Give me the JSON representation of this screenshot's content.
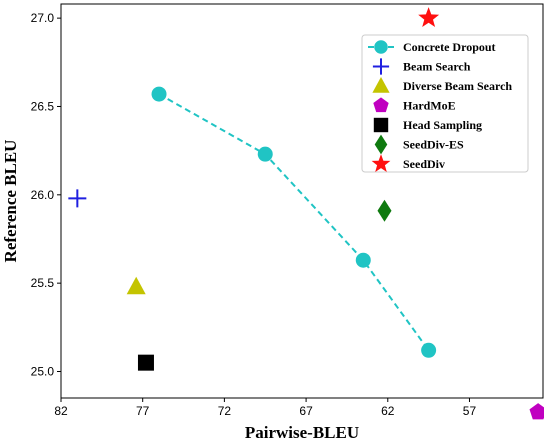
{
  "chart_data": {
    "type": "scatter",
    "xlabel": "Pairwise-BLEU",
    "ylabel": "Reference BLEU",
    "x_reversed": true,
    "xlim": [
      82,
      52.5
    ],
    "ylim": [
      24.85,
      27.08
    ],
    "x_ticks": [
      82,
      77,
      72,
      67,
      62,
      57
    ],
    "x_tick_labels": [
      "82",
      "77",
      "72",
      "67",
      "62",
      "57"
    ],
    "y_ticks": [
      25.0,
      25.5,
      26.0,
      26.5,
      27.0
    ],
    "y_tick_labels": [
      "25.0",
      "25.5",
      "26.0",
      "26.5",
      "27.0"
    ],
    "legend_position": "upper right",
    "series": [
      {
        "name": "Concrete Dropout",
        "marker": "circle",
        "line": "dashed",
        "color": "#20c4c4",
        "points": [
          [
            76.0,
            26.57
          ],
          [
            69.5,
            26.23
          ],
          [
            63.5,
            25.63
          ],
          [
            59.5,
            25.12
          ]
        ]
      },
      {
        "name": "Beam Search",
        "marker": "plus",
        "color": "#1f1fe0",
        "points": [
          [
            81.0,
            25.98
          ]
        ]
      },
      {
        "name": "Diverse Beam Search",
        "marker": "triangle",
        "color": "#c4c400",
        "points": [
          [
            77.4,
            25.48
          ]
        ]
      },
      {
        "name": "HardMoE",
        "marker": "pentagon",
        "color": "#c000c0",
        "points": [
          [
            52.8,
            24.77
          ]
        ]
      },
      {
        "name": "Head Sampling",
        "marker": "square",
        "color": "#000000",
        "points": [
          [
            76.8,
            25.05
          ]
        ]
      },
      {
        "name": "SeedDiv-ES",
        "marker": "diamond",
        "color": "#0f7a0f",
        "points": [
          [
            62.2,
            25.91
          ]
        ]
      },
      {
        "name": "SeedDiv",
        "marker": "star",
        "color": "#ff1010",
        "points": [
          [
            59.5,
            27.0
          ]
        ]
      }
    ]
  }
}
